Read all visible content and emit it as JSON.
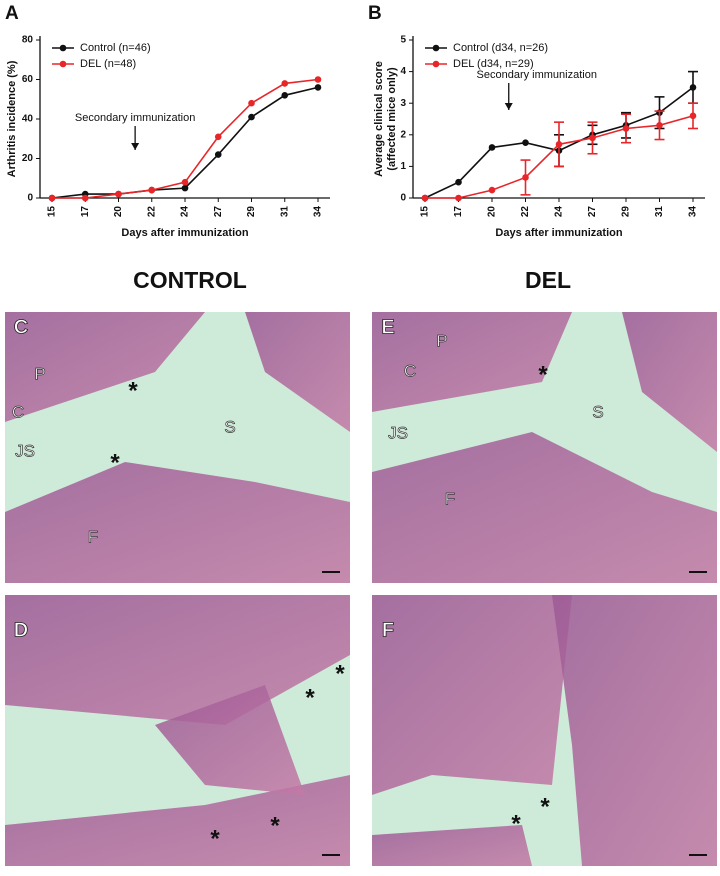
{
  "chart_data": [
    {
      "type": "line",
      "panel_label": "A",
      "categories": [
        "15",
        "17",
        "20",
        "22",
        "24",
        "27",
        "29",
        "31",
        "34"
      ],
      "xlabel": "Days after immunization",
      "ylabel": "Arthritis incidence (%)",
      "ylim": [
        0,
        80
      ],
      "yticks": [
        0,
        20,
        40,
        60,
        80
      ],
      "legend": "upper left",
      "annotation": "Secondary immunization",
      "series": [
        {
          "name": "Control (n=46)",
          "color": "#111111",
          "values": [
            0,
            2,
            2,
            4,
            5,
            22,
            41,
            52,
            56
          ]
        },
        {
          "name": "DEL (n=48)",
          "color": "#e8262a",
          "values": [
            0,
            0,
            2,
            4,
            8,
            31,
            48,
            58,
            60
          ]
        }
      ]
    },
    {
      "type": "line",
      "panel_label": "B",
      "categories": [
        "15",
        "17",
        "20",
        "22",
        "24",
        "27",
        "29",
        "31",
        "34"
      ],
      "xlabel": "Days after immunization",
      "ylabel": [
        "Average clinical score",
        "(affected mice only)"
      ],
      "ylim": [
        0,
        5
      ],
      "yticks": [
        0,
        1,
        2,
        3,
        4,
        5
      ],
      "legend": "upper left",
      "annotation": "Secondary immunization",
      "series": [
        {
          "name": "Control (d34, n=26)",
          "color": "#111111",
          "values": [
            0,
            0.5,
            1.6,
            1.75,
            1.5,
            2.0,
            2.3,
            2.7,
            3.5
          ],
          "errors": [
            null,
            null,
            null,
            null,
            0.5,
            0.3,
            0.4,
            0.5,
            0.5
          ]
        },
        {
          "name": "DEL (d34, n=29)",
          "color": "#e8262a",
          "values": [
            0,
            0,
            0.25,
            0.65,
            1.7,
            1.9,
            2.2,
            2.3,
            2.6
          ],
          "errors": [
            null,
            null,
            null,
            0.55,
            0.7,
            0.5,
            0.45,
            0.45,
            0.4
          ]
        }
      ]
    }
  ],
  "headings": [
    "CONTROL",
    "DEL"
  ],
  "images": [
    {
      "panel": "C",
      "labels": [
        "P",
        "C",
        "JS",
        "S",
        "F",
        "*",
        "*"
      ]
    },
    {
      "panel": "E",
      "labels": [
        "P",
        "C",
        "JS",
        "S",
        "F",
        "*"
      ]
    },
    {
      "panel": "D",
      "labels": [
        "*",
        "*",
        "*",
        "*"
      ]
    },
    {
      "panel": "F",
      "labels": [
        "*",
        "*"
      ]
    }
  ]
}
